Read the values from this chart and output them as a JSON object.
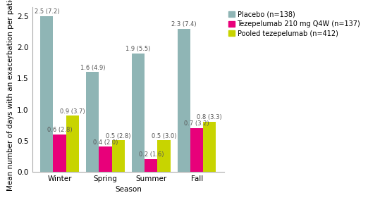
{
  "seasons": [
    "Winter",
    "Spring",
    "Summer",
    "Fall"
  ],
  "placebo": [
    2.5,
    1.6,
    1.9,
    2.3
  ],
  "placebo_labels": [
    "2.5 (7.2)",
    "1.6 (4.9)",
    "1.9 (5.5)",
    "2.3 (7.4)"
  ],
  "tezepelumab": [
    0.6,
    0.4,
    0.2,
    0.7
  ],
  "tezepelumab_labels": [
    "0.6 (2.8)",
    "0.4 (2.0)",
    "0.2 (1.6)",
    "0.7 (3.2)"
  ],
  "pooled": [
    0.9,
    0.5,
    0.5,
    0.8
  ],
  "pooled_labels": [
    "0.9 (3.7)",
    "0.5 (2.8)",
    "0.5 (3.0)",
    "0.8 (3.3)"
  ],
  "placebo_color": "#8fb5b5",
  "tezepelumab_color": "#e8007a",
  "pooled_color": "#c8d400",
  "legend_labels": [
    "Placebo (n=138)",
    "Tezepelumab 210 mg Q4W (n=137)",
    "Pooled tezepelumab (n=412)"
  ],
  "ylabel": "Mean number of days with an exacerbation per patient",
  "xlabel": "Season",
  "ylim": [
    0,
    2.65
  ],
  "yticks": [
    0.0,
    0.5,
    1.0,
    1.5,
    2.0,
    2.5
  ],
  "bar_width": 0.28,
  "label_fontsize": 6.0,
  "axis_fontsize": 7.5,
  "legend_fontsize": 7.0,
  "tick_fontsize": 7.5
}
